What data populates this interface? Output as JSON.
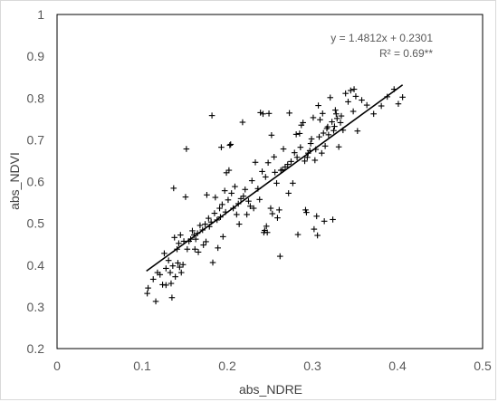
{
  "chart_data": {
    "type": "scatter",
    "title": "",
    "xlabel": "abs_NDRE",
    "ylabel": "abs_NDVI",
    "xlim": [
      0,
      0.5
    ],
    "ylim": [
      0.2,
      1.0
    ],
    "x_ticks": [
      "0",
      "0.1",
      "0.2",
      "0.3",
      "0.4",
      "0.5"
    ],
    "y_ticks": [
      "0.2",
      "0.3",
      "0.4",
      "0.5",
      "0.6",
      "0.7",
      "0.8",
      "0.9",
      "1"
    ],
    "grid": false,
    "marker": "plus",
    "marker_color": "#000000",
    "trendline": {
      "slope": 1.4812,
      "intercept": 0.2301,
      "x_range": [
        0.105,
        0.406
      ],
      "equation_label": "y = 1.4812x + 0.2301",
      "r2_label": "R² = 0.69**"
    },
    "points": [
      [
        0.107,
        0.345
      ],
      [
        0.106,
        0.332
      ],
      [
        0.113,
        0.366
      ],
      [
        0.116,
        0.313
      ],
      [
        0.118,
        0.382
      ],
      [
        0.121,
        0.377
      ],
      [
        0.124,
        0.353
      ],
      [
        0.126,
        0.428
      ],
      [
        0.128,
        0.392
      ],
      [
        0.128,
        0.352
      ],
      [
        0.131,
        0.411
      ],
      [
        0.133,
        0.382
      ],
      [
        0.134,
        0.356
      ],
      [
        0.135,
        0.322
      ],
      [
        0.136,
        0.398
      ],
      [
        0.137,
        0.584
      ],
      [
        0.138,
        0.466
      ],
      [
        0.139,
        0.372
      ],
      [
        0.141,
        0.438
      ],
      [
        0.142,
        0.405
      ],
      [
        0.143,
        0.452
      ],
      [
        0.144,
        0.395
      ],
      [
        0.145,
        0.472
      ],
      [
        0.146,
        0.382
      ],
      [
        0.148,
        0.401
      ],
      [
        0.149,
        0.457
      ],
      [
        0.151,
        0.563
      ],
      [
        0.152,
        0.678
      ],
      [
        0.153,
        0.438
      ],
      [
        0.155,
        0.457
      ],
      [
        0.157,
        0.462
      ],
      [
        0.159,
        0.482
      ],
      [
        0.161,
        0.472
      ],
      [
        0.162,
        0.438
      ],
      [
        0.163,
        0.462
      ],
      [
        0.165,
        0.476
      ],
      [
        0.166,
        0.431
      ],
      [
        0.168,
        0.495
      ],
      [
        0.171,
        0.484
      ],
      [
        0.172,
        0.448
      ],
      [
        0.174,
        0.498
      ],
      [
        0.175,
        0.456
      ],
      [
        0.176,
        0.568
      ],
      [
        0.178,
        0.512
      ],
      [
        0.179,
        0.492
      ],
      [
        0.181,
        0.503
      ],
      [
        0.182,
        0.758
      ],
      [
        0.183,
        0.406
      ],
      [
        0.185,
        0.524
      ],
      [
        0.186,
        0.562
      ],
      [
        0.188,
        0.508
      ],
      [
        0.189,
        0.441
      ],
      [
        0.191,
        0.536
      ],
      [
        0.192,
        0.515
      ],
      [
        0.193,
        0.682
      ],
      [
        0.194,
        0.545
      ],
      [
        0.195,
        0.468
      ],
      [
        0.197,
        0.578
      ],
      [
        0.198,
        0.527
      ],
      [
        0.199,
        0.621
      ],
      [
        0.201,
        0.556
      ],
      [
        0.202,
        0.627
      ],
      [
        0.203,
        0.687
      ],
      [
        0.204,
        0.689
      ],
      [
        0.205,
        0.572
      ],
      [
        0.207,
        0.536
      ],
      [
        0.209,
        0.588
      ],
      [
        0.211,
        0.521
      ],
      [
        0.213,
        0.547
      ],
      [
        0.214,
        0.498
      ],
      [
        0.216,
        0.559
      ],
      [
        0.218,
        0.742
      ],
      [
        0.219,
        0.565
      ],
      [
        0.221,
        0.581
      ],
      [
        0.223,
        0.521
      ],
      [
        0.225,
        0.553
      ],
      [
        0.227,
        0.541
      ],
      [
        0.229,
        0.602
      ],
      [
        0.231,
        0.536
      ],
      [
        0.233,
        0.646
      ],
      [
        0.236,
        0.583
      ],
      [
        0.238,
        0.557
      ],
      [
        0.239,
        0.765
      ],
      [
        0.241,
        0.624
      ],
      [
        0.242,
        0.762
      ],
      [
        0.243,
        0.478
      ],
      [
        0.244,
        0.483
      ],
      [
        0.245,
        0.611
      ],
      [
        0.246,
        0.493
      ],
      [
        0.247,
        0.478
      ],
      [
        0.248,
        0.645
      ],
      [
        0.249,
        0.763
      ],
      [
        0.251,
        0.536
      ],
      [
        0.252,
        0.711
      ],
      [
        0.253,
        0.523
      ],
      [
        0.255,
        0.659
      ],
      [
        0.256,
        0.622
      ],
      [
        0.258,
        0.596
      ],
      [
        0.259,
        0.513
      ],
      [
        0.261,
        0.532
      ],
      [
        0.262,
        0.421
      ],
      [
        0.263,
        0.627
      ],
      [
        0.265,
        0.628
      ],
      [
        0.266,
        0.678
      ],
      [
        0.268,
        0.635
      ],
      [
        0.271,
        0.641
      ],
      [
        0.272,
        0.572
      ],
      [
        0.273,
        0.764
      ],
      [
        0.275,
        0.648
      ],
      [
        0.277,
        0.596
      ],
      [
        0.279,
        0.669
      ],
      [
        0.281,
        0.713
      ],
      [
        0.282,
        0.658
      ],
      [
        0.283,
        0.473
      ],
      [
        0.285,
        0.715
      ],
      [
        0.286,
        0.682
      ],
      [
        0.287,
        0.735
      ],
      [
        0.289,
        0.741
      ],
      [
        0.291,
        0.649
      ],
      [
        0.292,
        0.532
      ],
      [
        0.293,
        0.526
      ],
      [
        0.294,
        0.658
      ],
      [
        0.295,
        0.668
      ],
      [
        0.297,
        0.674
      ],
      [
        0.298,
        0.691
      ],
      [
        0.299,
        0.702
      ],
      [
        0.301,
        0.753
      ],
      [
        0.302,
        0.486
      ],
      [
        0.303,
        0.651
      ],
      [
        0.304,
        0.677
      ],
      [
        0.305,
        0.517
      ],
      [
        0.306,
        0.471
      ],
      [
        0.307,
        0.782
      ],
      [
        0.308,
        0.707
      ],
      [
        0.309,
        0.748
      ],
      [
        0.311,
        0.668
      ],
      [
        0.312,
        0.763
      ],
      [
        0.313,
        0.716
      ],
      [
        0.314,
        0.505
      ],
      [
        0.315,
        0.685
      ],
      [
        0.317,
        0.727
      ],
      [
        0.318,
        0.731
      ],
      [
        0.319,
        0.712
      ],
      [
        0.321,
        0.801
      ],
      [
        0.323,
        0.743
      ],
      [
        0.324,
        0.509
      ],
      [
        0.325,
        0.722
      ],
      [
        0.326,
        0.732
      ],
      [
        0.327,
        0.771
      ],
      [
        0.328,
        0.762
      ],
      [
        0.329,
        0.751
      ],
      [
        0.331,
        0.683
      ],
      [
        0.333,
        0.741
      ],
      [
        0.334,
        0.757
      ],
      [
        0.336,
        0.723
      ],
      [
        0.339,
        0.811
      ],
      [
        0.342,
        0.791
      ],
      [
        0.345,
        0.818
      ],
      [
        0.348,
        0.768
      ],
      [
        0.349,
        0.821
      ],
      [
        0.351,
        0.804
      ],
      [
        0.353,
        0.721
      ],
      [
        0.358,
        0.795
      ],
      [
        0.364,
        0.783
      ],
      [
        0.372,
        0.762
      ],
      [
        0.381,
        0.781
      ],
      [
        0.388,
        0.803
      ],
      [
        0.396,
        0.821
      ],
      [
        0.401,
        0.786
      ],
      [
        0.406,
        0.802
      ]
    ]
  }
}
